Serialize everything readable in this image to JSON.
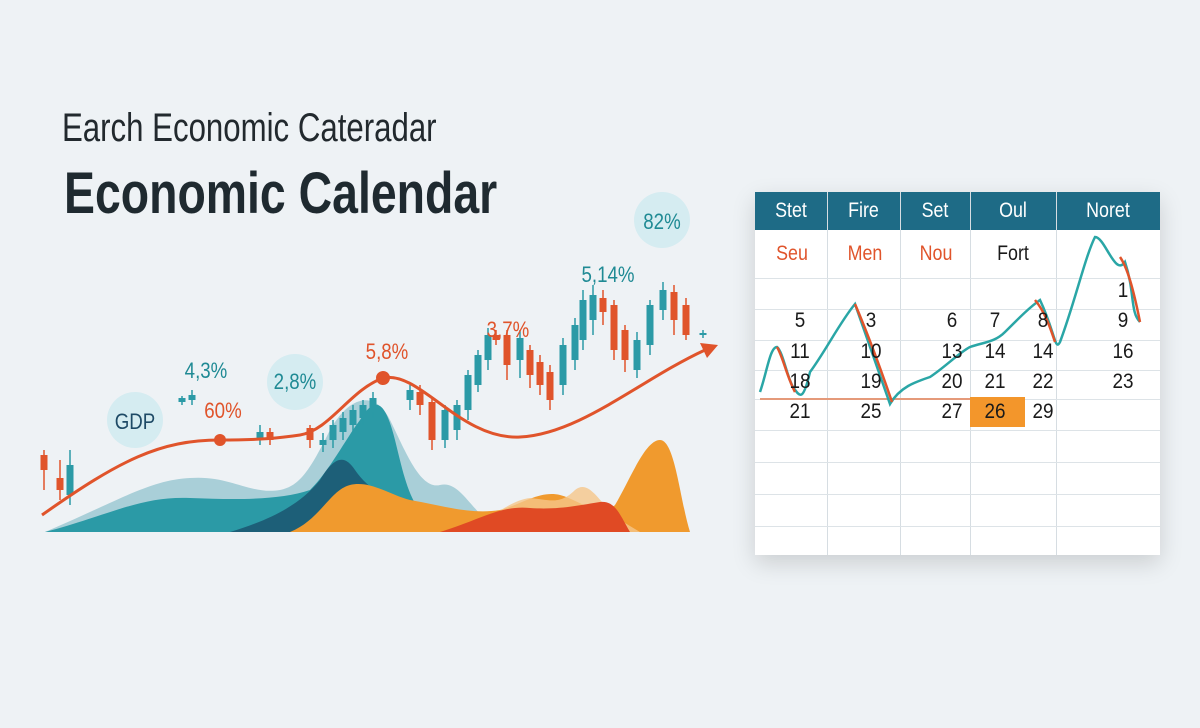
{
  "title": {
    "line1": "Earch Economic Cateradar",
    "line2": "Economic Calendar"
  },
  "chart_labels": {
    "gdp": "GDP",
    "l43": "4,3%",
    "l60": "60%",
    "l28": "2,8%",
    "l58": "5,8%",
    "l37": "3,7%",
    "l514": "5,14%",
    "l82": "82%"
  },
  "colors": {
    "teal": "#1f8a94",
    "red": "#e0542b",
    "orange": "#f3962b",
    "header": "#1e6b86",
    "background": "#eef2f5"
  },
  "calendar": {
    "headers": [
      "Stet",
      "Fire",
      "Set",
      "Oul",
      "Noret"
    ],
    "subheaders": [
      "Seu",
      "Men",
      "Nou",
      "Fort"
    ],
    "rows": [
      [
        "",
        "",
        "",
        "",
        "",
        "1"
      ],
      [
        "5",
        "3",
        "6",
        "7",
        "8",
        "9"
      ],
      [
        "11",
        "10",
        "13",
        "14",
        "14",
        "16"
      ],
      [
        "18",
        "19",
        "20",
        "21",
        "22",
        "23"
      ],
      [
        "21",
        "25",
        "27",
        "26",
        "29",
        ""
      ]
    ],
    "highlighted_day": "26"
  }
}
